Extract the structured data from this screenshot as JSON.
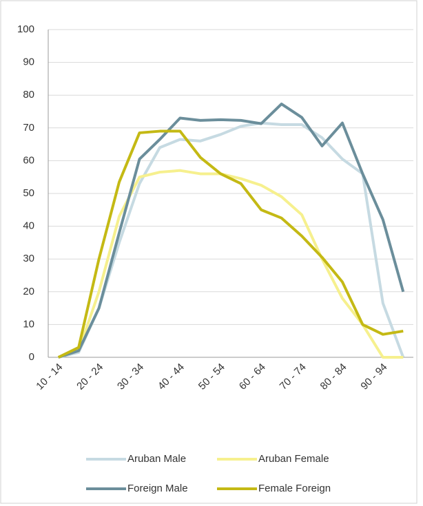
{
  "chart_data": {
    "type": "line",
    "categories": [
      "10 - 14",
      null,
      "20 - 24",
      null,
      "30 - 34",
      null,
      "40 - 44",
      null,
      "50 - 54",
      null,
      "60 - 64",
      null,
      "70 - 74",
      null,
      "80 - 84",
      null,
      "90 - 94",
      null
    ],
    "series": [
      {
        "name": "Aruban Male",
        "color": "#c6dae2",
        "values": [
          0,
          1.5,
          15,
          35,
          53,
          64,
          66.5,
          66,
          68,
          70.5,
          71.5,
          71,
          71,
          67,
          60.5,
          56,
          16.5,
          0
        ]
      },
      {
        "name": "Aruban Female",
        "color": "#f6f08e",
        "values": [
          0,
          2,
          20,
          43,
          55,
          56.5,
          57,
          56,
          56,
          54.5,
          52.5,
          49,
          43.5,
          30,
          18,
          10,
          0,
          0
        ]
      },
      {
        "name": "Foreign Male",
        "color": "#6b8e9b",
        "values": [
          0,
          2,
          15,
          38,
          60.5,
          66.5,
          73,
          72.3,
          72.5,
          72.3,
          71.3,
          77.3,
          73.2,
          64.5,
          71.5,
          56,
          42,
          20
        ]
      },
      {
        "name": "Female Foreign",
        "color": "#c4b914",
        "values": [
          0,
          3,
          30,
          53.5,
          68.5,
          69,
          69,
          61,
          56,
          53,
          45,
          42.5,
          37,
          30.5,
          23,
          10,
          7,
          8
        ]
      }
    ],
    "ylim": [
      0,
      100
    ],
    "yticks": [
      0,
      10,
      20,
      30,
      40,
      50,
      60,
      70,
      80,
      90,
      100
    ],
    "grid": true,
    "legend": "bottom"
  }
}
